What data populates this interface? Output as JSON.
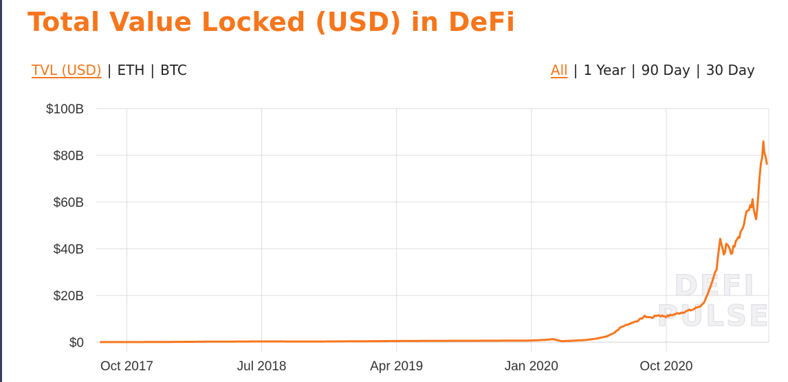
{
  "title": "Total Value Locked (USD) in DeFi",
  "metric_options": [
    {
      "label": "TVL (USD)",
      "active": true
    },
    {
      "label": "ETH",
      "active": false
    },
    {
      "label": "BTC",
      "active": false
    }
  ],
  "range_options": [
    {
      "label": "All",
      "active": true
    },
    {
      "label": "1 Year",
      "active": false
    },
    {
      "label": "90 Day",
      "active": false
    },
    {
      "label": "30 Day",
      "active": false
    }
  ],
  "watermark": {
    "line1": "DEFI",
    "line2": "PULSE"
  },
  "colors": {
    "accent": "#f7761c",
    "grid": "#dddddd",
    "text": "#333333"
  },
  "chart_data": {
    "type": "line",
    "title": "Total Value Locked (USD) in DeFi",
    "xlabel": "",
    "ylabel": "",
    "ylim": [
      0,
      100
    ],
    "y_unit": "billion USD",
    "y_ticks": [
      0,
      20,
      40,
      60,
      80,
      100
    ],
    "y_tick_labels": [
      "$0",
      "$20B",
      "$40B",
      "$60B",
      "$80B",
      "$100B"
    ],
    "x_tick_positions": [
      2017.75,
      2018.5,
      2019.25,
      2020.0,
      2020.75
    ],
    "x_tick_labels": [
      "Oct 2017",
      "Jul 2018",
      "Apr 2019",
      "Jan 2020",
      "Oct 2020"
    ],
    "xlim": [
      2017.58,
      2021.32
    ],
    "grid": true,
    "series": [
      {
        "name": "TVL (USD)",
        "x": [
          2017.6,
          2017.9,
          2018.2,
          2018.5,
          2018.8,
          2019.1,
          2019.4,
          2019.7,
          2019.9,
          2020.0,
          2020.08,
          2020.12,
          2020.17,
          2020.22,
          2020.3,
          2020.36,
          2020.42,
          2020.46,
          2020.5,
          2020.55,
          2020.6,
          2020.63,
          2020.67,
          2020.7,
          2020.75,
          2020.8,
          2020.85,
          2020.9,
          2020.95,
          2020.98,
          2021.0,
          2021.03,
          2021.05,
          2021.07,
          2021.09,
          2021.11,
          2021.13,
          2021.15,
          2021.17,
          2021.19,
          2021.21,
          2021.23,
          2021.25,
          2021.27,
          2021.29,
          2021.3,
          2021.31
        ],
        "values": [
          0.02,
          0.05,
          0.2,
          0.3,
          0.25,
          0.4,
          0.55,
          0.6,
          0.65,
          0.7,
          1.0,
          1.3,
          0.4,
          0.6,
          0.9,
          1.5,
          2.5,
          4.0,
          6.5,
          8.0,
          9.5,
          11.0,
          10.5,
          11.5,
          11.0,
          12.0,
          13.0,
          14.0,
          16.0,
          20.0,
          24.0,
          32.0,
          45.0,
          37.0,
          43.0,
          38.0,
          41.0,
          45.0,
          47.0,
          55.0,
          56.0,
          60.0,
          54.0,
          70.0,
          86.0,
          81.0,
          76.0
        ]
      }
    ]
  }
}
